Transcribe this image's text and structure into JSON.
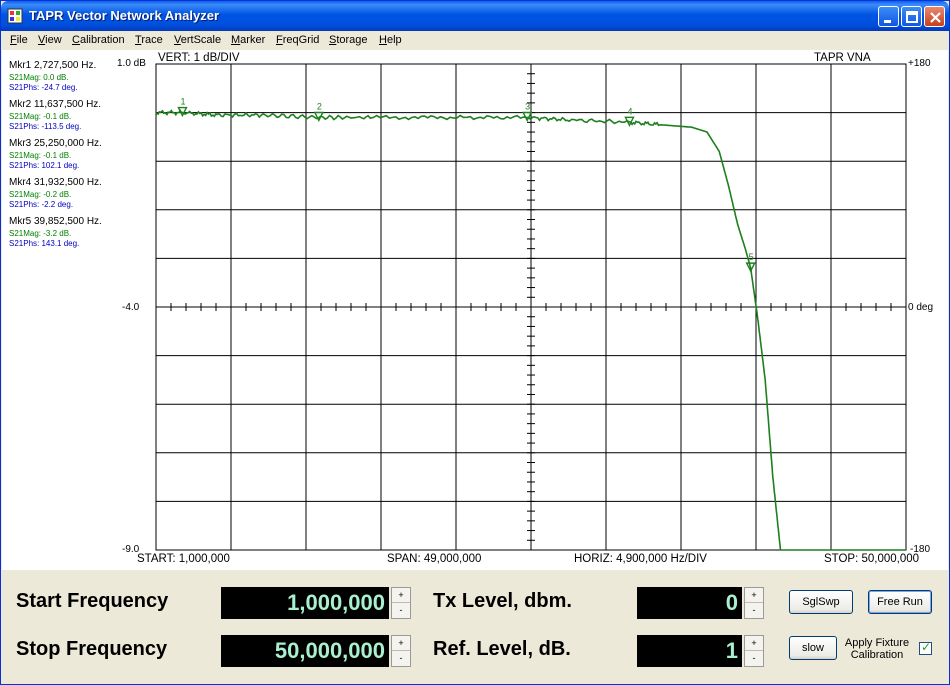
{
  "window": {
    "title": "TAPR Vector Network Analyzer"
  },
  "menu": [
    "File",
    "View",
    "Calibration",
    "Trace",
    "VertScale",
    "Marker",
    "FreqGrid",
    "Storage",
    "Help"
  ],
  "markers": [
    {
      "label": "Mkr1  2,727,500 Hz.",
      "mag": "S21Mag: 0.0 dB.",
      "phs": "S21Phs: -24.7 deg."
    },
    {
      "label": "Mkr2  11,637,500 Hz.",
      "mag": "S21Mag: -0.1 dB.",
      "phs": "S21Phs: -113.5 deg."
    },
    {
      "label": "Mkr3  25,250,000 Hz.",
      "mag": "S21Mag: -0.1 dB.",
      "phs": "S21Phs: 102.1 deg."
    },
    {
      "label": "Mkr4  31,932,500 Hz.",
      "mag": "S21Mag: -0.2 dB.",
      "phs": "S21Phs: -2.2 deg."
    },
    {
      "label": "Mkr5  39,852,500 Hz.",
      "mag": "S21Mag: -3.2 dB.",
      "phs": "S21Phs: 143.1 deg."
    }
  ],
  "plot": {
    "vert_label": "VERT:  1 dB/DIV",
    "brand_label": "TAPR VNA",
    "left_top": "1.0 dB",
    "left_mid": "-4.0",
    "left_bottom": "-9.0",
    "right_top": "+180",
    "right_mid": "0 deg",
    "right_bottom": "-180",
    "start_label": "START: 1,000,000",
    "span_label": "SPAN: 49,000,000",
    "horiz_label": "HORIZ: 4,900,000 Hz/DIV",
    "stop_label": "STOP: 50,000,000"
  },
  "chart_data": {
    "type": "line",
    "x_unit": "Hz",
    "y_unit": "dB",
    "xlim": [
      1000000,
      50000000
    ],
    "ylim": [
      -9.0,
      1.0
    ],
    "y2lim": [
      -180,
      180
    ],
    "grid": true,
    "series": [
      {
        "color": "#1E7F1E",
        "x": [
          1000000,
          2727500,
          5000000,
          8000000,
          11637500,
          15000000,
          20000000,
          25250000,
          28000000,
          31932500,
          34000000,
          36000000,
          37000000,
          37800000,
          38400000,
          39000000,
          39500000,
          39852500,
          40300000,
          40800000,
          41300000,
          41800000
        ],
        "y": [
          0.0,
          0.0,
          -0.05,
          -0.05,
          -0.1,
          -0.1,
          -0.1,
          -0.1,
          -0.15,
          -0.2,
          -0.25,
          -0.3,
          -0.4,
          -0.8,
          -1.5,
          -2.3,
          -2.8,
          -3.2,
          -4.2,
          -5.5,
          -7.5,
          -9.0
        ]
      }
    ],
    "markers": [
      {
        "n": "1",
        "x": 2727500,
        "y": 0.0
      },
      {
        "n": "2",
        "x": 11637500,
        "y": -0.1
      },
      {
        "n": "3",
        "x": 25250000,
        "y": -0.1
      },
      {
        "n": "4",
        "x": 31932500,
        "y": -0.2
      },
      {
        "n": "5",
        "x": 39852500,
        "y": -3.2
      }
    ]
  },
  "controls": {
    "start_freq_label": "Start Frequency",
    "start_freq_value": "1,000,000",
    "stop_freq_label": "Stop Frequency",
    "stop_freq_value": "50,000,000",
    "tx_level_label": "Tx Level, dbm.",
    "tx_level_value": "0",
    "ref_level_label": "Ref. Level, dB.",
    "ref_level_value": "1",
    "sglswp_label": "SglSwp",
    "freerun_label": "Free Run",
    "slow_label": "slow",
    "apply_fixture_label": "Apply Fixture Calibration",
    "apply_fixture_checked": "✓",
    "spin_up": "+",
    "spin_down": "-"
  },
  "colors": {
    "trace": "#1E7F1E",
    "grid": "#000000",
    "lcd_bg": "#000000",
    "lcd_text": "#A8F0D0",
    "mag_text": "#008000",
    "phs_text": "#0000C0"
  }
}
